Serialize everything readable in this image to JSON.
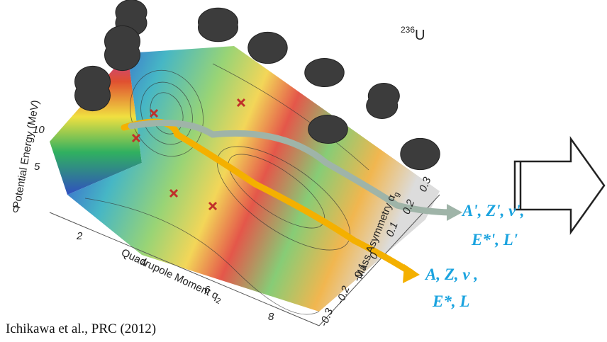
{
  "figure": {
    "nucleus": {
      "mass_number": "236",
      "symbol": "U"
    },
    "axes": {
      "energy": {
        "label": "Potential Energy (MeV)",
        "ticks": [
          "10",
          "5"
        ]
      },
      "quadrupole": {
        "label": "Quadrupole Moment q",
        "label_sub": "2",
        "ticks": [
          "0",
          "2",
          "4",
          "6",
          "8"
        ]
      },
      "asymmetry": {
        "label": "Mass Asymmetry α",
        "label_sub": "g",
        "ticks": [
          "0.3",
          "0.2",
          "0.1",
          "0",
          "-0.1",
          "-0.2",
          "-0.3"
        ]
      }
    },
    "fragments": [
      {
        "lines": [
          "A', Z', ν',",
          "E*', L'"
        ]
      },
      {
        "lines": [
          "A, Z, ν ,",
          "E*, L"
        ]
      }
    ],
    "citation": "Ichikawa et al., PRC (2012)"
  }
}
